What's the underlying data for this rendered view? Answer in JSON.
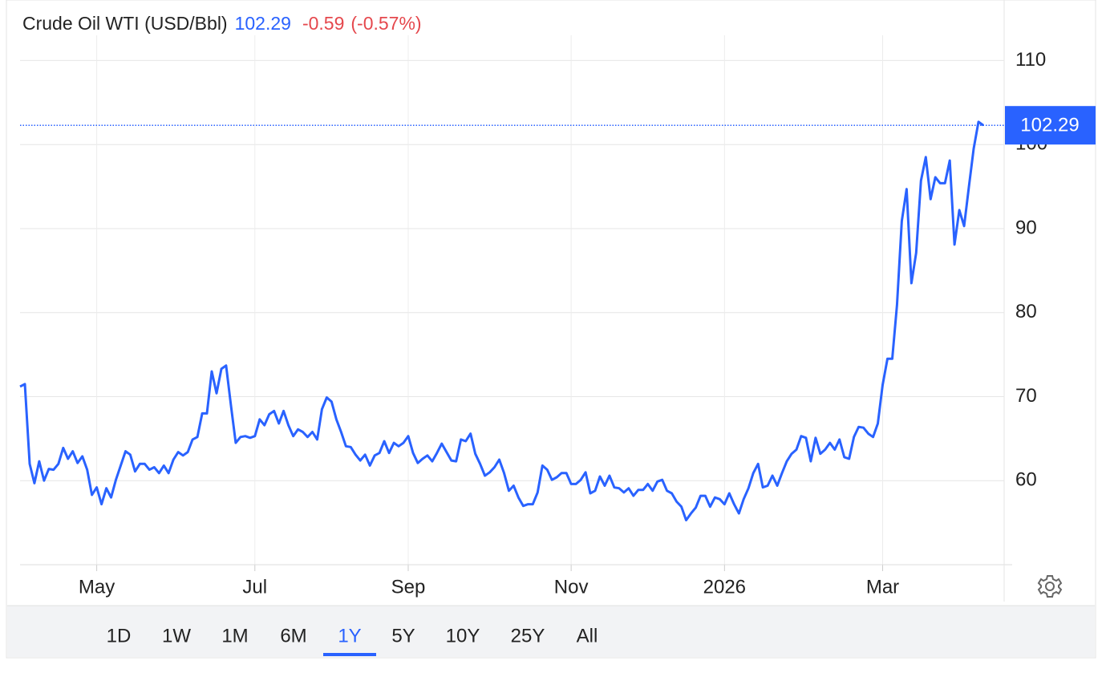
{
  "chart_data": {
    "type": "line",
    "title": "Crude Oil WTI (USD/Bbl)",
    "change": "-0.59",
    "change_pct": "(-0.57%)",
    "color": "#2962ff",
    "values": [
      71.2,
      71.5,
      62,
      59.7,
      62.3,
      60,
      61.4,
      61.3,
      62,
      63.9,
      62.6,
      63.5,
      62.1,
      62.9,
      61.3,
      58.3,
      59.2,
      57.2,
      59.1,
      58,
      60.1,
      61.8,
      63.5,
      63.1,
      61.1,
      62,
      62,
      61.3,
      61.6,
      60.9,
      61.8,
      60.9,
      62.5,
      63.4,
      63,
      63.4,
      64.9,
      65.2,
      68,
      68,
      73,
      70.4,
      73.3,
      73.7,
      69,
      64.5,
      65.2,
      65.3,
      65.1,
      65.3,
      67.3,
      66.6,
      67.9,
      68.3,
      66.8,
      68.3,
      66.6,
      65.3,
      66.1,
      65.8,
      65.2,
      65.8,
      64.9,
      68.5,
      69.9,
      69.4,
      67.3,
      65.8,
      64.1,
      64,
      63.1,
      62.4,
      63.1,
      61.8,
      63,
      63.3,
      64.7,
      63.3,
      64.5,
      64.1,
      64.5,
      65.3,
      63.3,
      62.1,
      62.6,
      63,
      62.3,
      63.3,
      64.4,
      63.4,
      62.4,
      62.3,
      64.9,
      64.7,
      65.6,
      63.2,
      62,
      60.6,
      61,
      61.6,
      62.5,
      60.9,
      58.8,
      59.4,
      58,
      57,
      57.2,
      57.2,
      58.6,
      61.8,
      61.3,
      60.1,
      60.4,
      60.9,
      60.9,
      59.6,
      59.6,
      60.1,
      61,
      58.5,
      58.8,
      60.5,
      59.4,
      60.6,
      59.2,
      59.1,
      58.6,
      59.1,
      58.2,
      58.9,
      58.9,
      59.6,
      58.8,
      59.9,
      60.1,
      58.8,
      58.5,
      57.5,
      56.9,
      55.3,
      56.1,
      56.8,
      58.2,
      58.2,
      56.9,
      58,
      57.8,
      57.2,
      58.5,
      57.2,
      56.1,
      57.8,
      59.1,
      60.9,
      62,
      59.2,
      59.4,
      60.6,
      59.4,
      60.9,
      62.3,
      63.2,
      63.7,
      65.3,
      65.1,
      62.3,
      65.1,
      63.2,
      63.7,
      64.5,
      63.7,
      64.9,
      62.8,
      62.6,
      65.2,
      66.4,
      66.3,
      65.6,
      65.2,
      66.8,
      71.4,
      74.5,
      74.5,
      80.9,
      90.9,
      94.7,
      83.5,
      87.1,
      95.7,
      98.5,
      93.5,
      96.1,
      95.4,
      95.4,
      98.1,
      88.1,
      92.2,
      90.3,
      95,
      99.5,
      102.7,
      102.29
    ],
    "xlim": [
      0,
      201
    ],
    "xticks": [
      {
        "value": 16,
        "label": "May"
      },
      {
        "value": 49,
        "label": "Jul"
      },
      {
        "value": 81,
        "label": "Sep"
      },
      {
        "value": 115,
        "label": "Nov"
      },
      {
        "value": 147,
        "label": "2026"
      },
      {
        "value": 180,
        "label": "Mar"
      }
    ],
    "ylim": [
      50,
      113
    ],
    "yticks": [
      60,
      70,
      80,
      90,
      100,
      110
    ],
    "grid": true,
    "ranges": [
      "1D",
      "1W",
      "1M",
      "6M",
      "1Y",
      "5Y",
      "10Y",
      "25Y",
      "All"
    ],
    "active_range": "1Y"
  }
}
